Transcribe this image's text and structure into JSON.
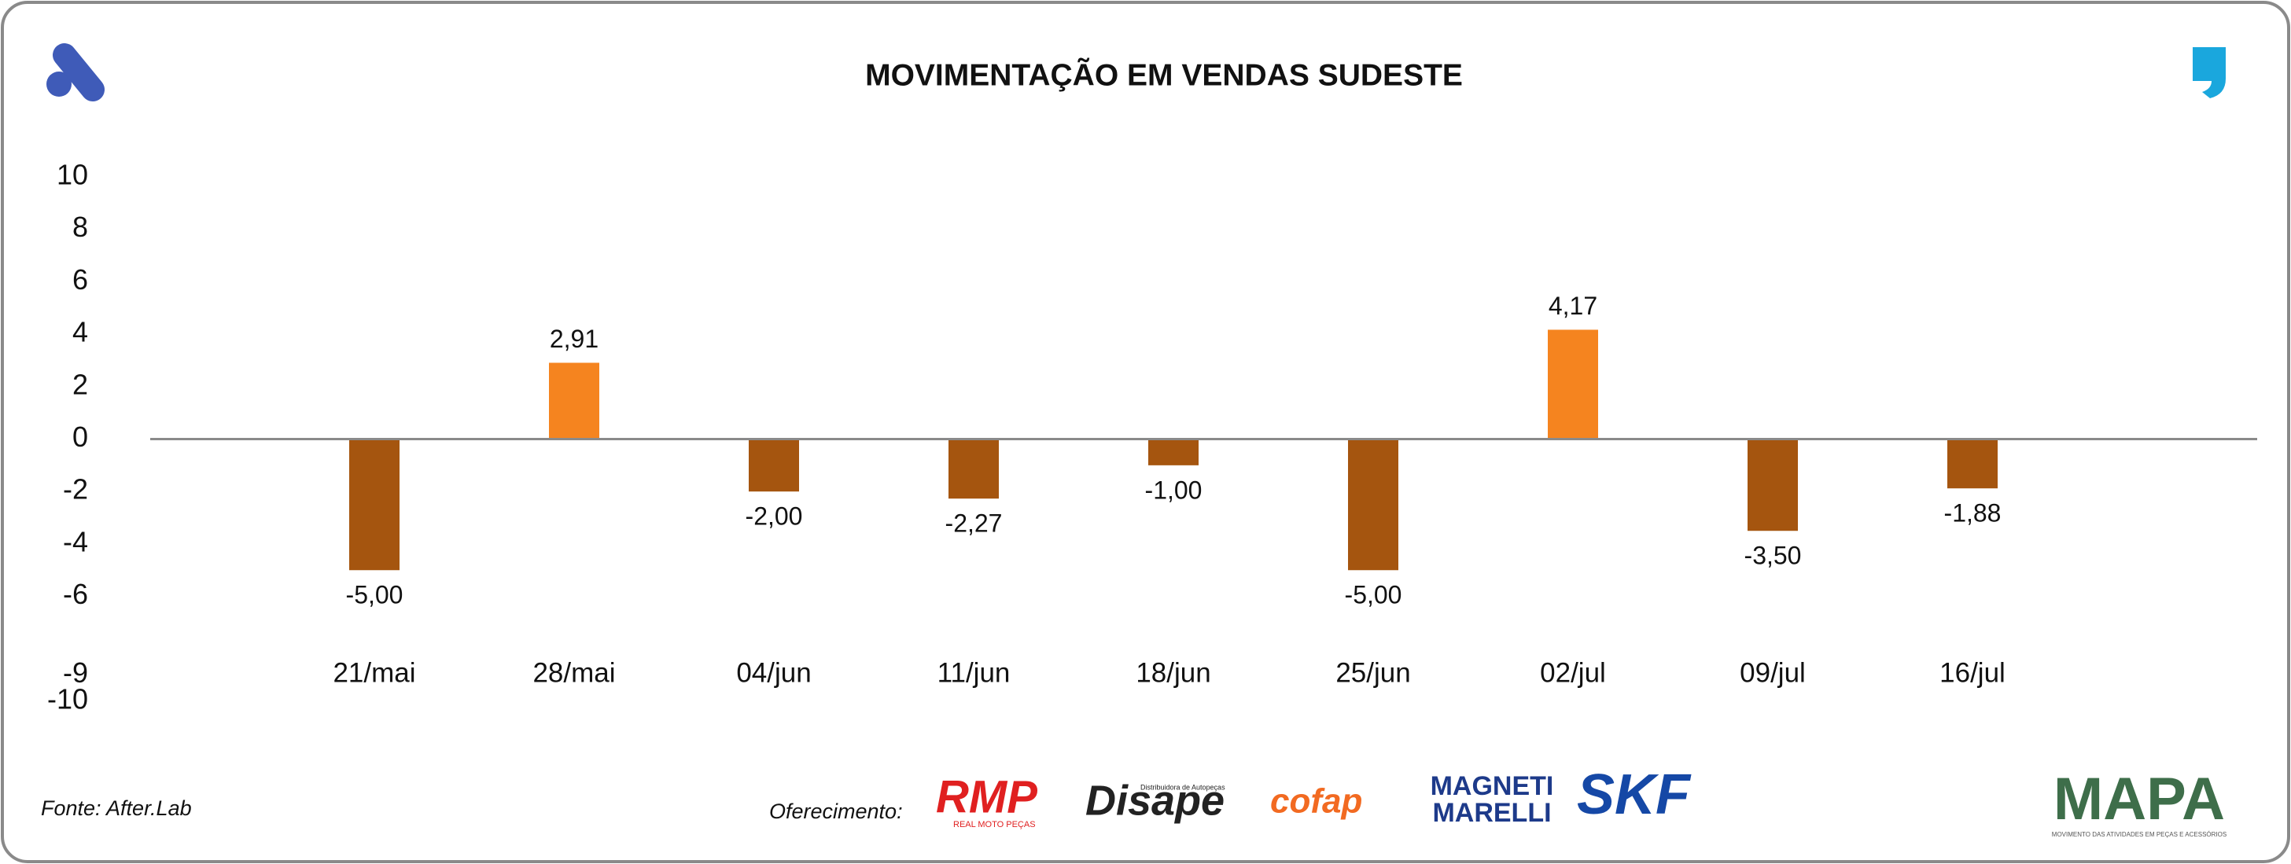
{
  "chart_data": {
    "type": "bar",
    "title": "MOVIMENTAÇÃO EM VENDAS SUDESTE",
    "categories": [
      "21/mai",
      "28/mai",
      "04/jun",
      "11/jun",
      "18/jun",
      "25/jun",
      "02/jul",
      "09/jul",
      "16/jul"
    ],
    "values": [
      -5.0,
      2.91,
      -2.0,
      -2.27,
      -1.0,
      -5.0,
      4.17,
      -3.5,
      -1.88
    ],
    "value_labels": [
      "-5,00",
      "2,91",
      "-2,00",
      "-2,27",
      "-1,00",
      "-5,00",
      "4,17",
      "-3,50",
      "-1,88"
    ],
    "positive_color": "#f5841f",
    "negative_color": "#a5550f",
    "ylim": [
      -10,
      10
    ],
    "yticks": [
      10,
      8,
      6,
      4,
      2,
      0,
      -2,
      -4,
      -6,
      -9,
      -10
    ],
    "grid": false
  },
  "footer": {
    "source": "Fonte: After.Lab",
    "sponsor_label": "Oferecimento:",
    "sponsors": [
      "RMP",
      "REAL MOTO PEÇAS",
      "Disape",
      "Distribuidora de Autopeças",
      "cofap",
      "MAGNETI",
      "MARELLI",
      "SKF"
    ],
    "brand": "MAPA",
    "brand_tagline": "MOVIMENTO DAS ATIVIDADES EM PEÇAS E ACESSÓRIOS"
  }
}
